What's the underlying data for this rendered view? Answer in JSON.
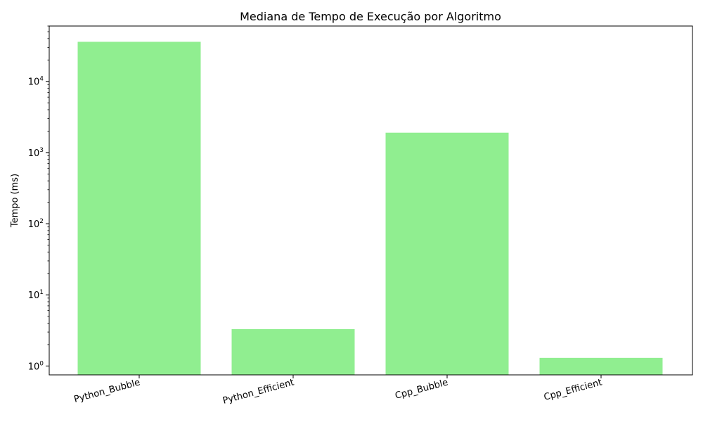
{
  "chart_data": {
    "type": "bar",
    "title": "Mediana de Tempo de Execução por Algoritmo",
    "xlabel": "",
    "ylabel": "Tempo (ms)",
    "yscale": "log",
    "ylim": [
      0.75,
      60000
    ],
    "grid": false,
    "categories": [
      "Python_Bubble",
      "Python_Efficient",
      "Cpp_Bubble",
      "Cpp_Efficient"
    ],
    "values": [
      36000,
      3.3,
      1900,
      1.3
    ],
    "bar_color": "#90ee90",
    "yticks": [
      {
        "value": 1,
        "base": "10",
        "exp": "0"
      },
      {
        "value": 10,
        "base": "10",
        "exp": "1"
      },
      {
        "value": 100,
        "base": "10",
        "exp": "2"
      },
      {
        "value": 1000,
        "base": "10",
        "exp": "3"
      },
      {
        "value": 10000,
        "base": "10",
        "exp": "4"
      }
    ]
  }
}
